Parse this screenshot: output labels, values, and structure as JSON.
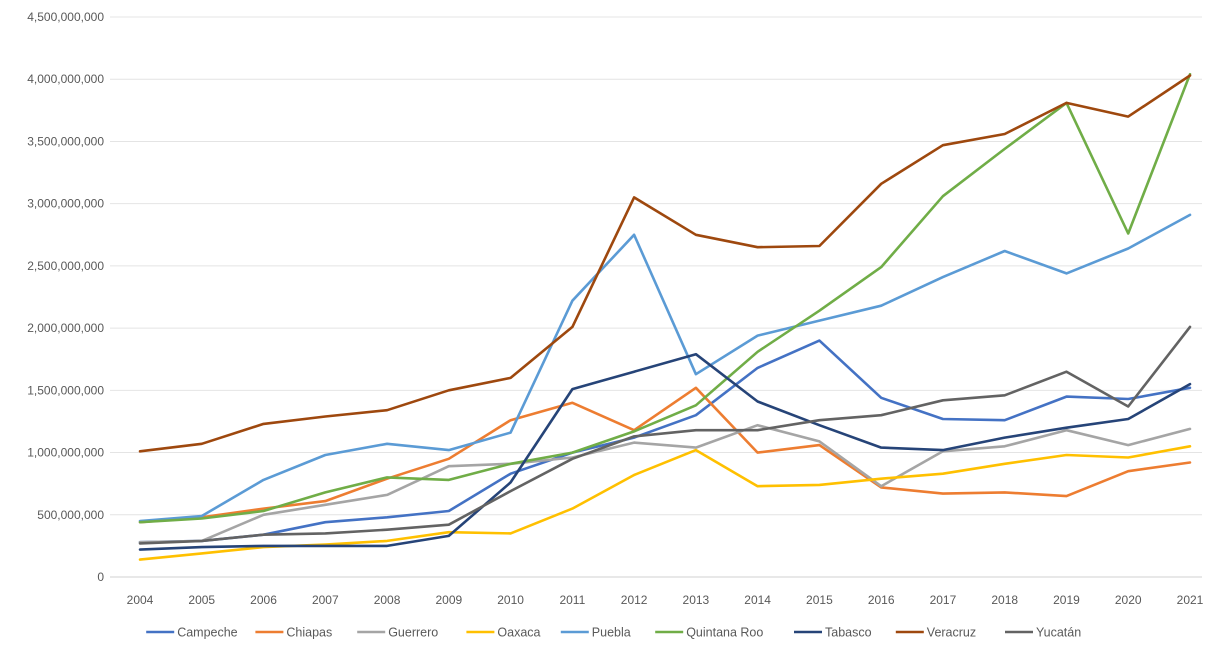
{
  "chart_data": {
    "type": "line",
    "title": "",
    "xlabel": "",
    "ylabel": "",
    "categories": [
      "2004",
      "2005",
      "2006",
      "2007",
      "2008",
      "2009",
      "2010",
      "2011",
      "2012",
      "2013",
      "2014",
      "2015",
      "2016",
      "2017",
      "2018",
      "2019",
      "2020",
      "2021"
    ],
    "ylim": [
      0,
      4500000000
    ],
    "yticks": [
      0,
      500000000,
      1000000000,
      1500000000,
      2000000000,
      2500000000,
      3000000000,
      3500000000,
      4000000000,
      4500000000
    ],
    "ytick_labels": [
      "0",
      "500,000,000",
      "1,000,000,000",
      "1,500,000,000",
      "2,000,000,000",
      "2,500,000,000",
      "3,000,000,000",
      "3,500,000,000",
      "4,000,000,000",
      "4,500,000,000"
    ],
    "grid": true,
    "legend_position": "bottom",
    "series": [
      {
        "name": "Campeche",
        "color": "#4472c4",
        "values": [
          280000000,
          290000000,
          340000000,
          440000000,
          480000000,
          530000000,
          830000000,
          1000000000,
          1120000000,
          1300000000,
          1680000000,
          1900000000,
          1440000000,
          1270000000,
          1260000000,
          1450000000,
          1430000000,
          1520000000
        ]
      },
      {
        "name": "Chiapas",
        "color": "#ed7d31",
        "values": [
          440000000,
          480000000,
          550000000,
          610000000,
          790000000,
          950000000,
          1260000000,
          1400000000,
          1180000000,
          1520000000,
          1000000000,
          1060000000,
          720000000,
          670000000,
          680000000,
          650000000,
          850000000,
          920000000
        ]
      },
      {
        "name": "Guerrero",
        "color": "#a5a5a5",
        "values": [
          280000000,
          290000000,
          500000000,
          580000000,
          660000000,
          890000000,
          910000000,
          960000000,
          1080000000,
          1040000000,
          1220000000,
          1090000000,
          730000000,
          1010000000,
          1050000000,
          1180000000,
          1060000000,
          1190000000
        ]
      },
      {
        "name": "Oaxaca",
        "color": "#ffc000",
        "values": [
          140000000,
          190000000,
          240000000,
          260000000,
          290000000,
          360000000,
          350000000,
          550000000,
          820000000,
          1020000000,
          730000000,
          740000000,
          790000000,
          830000000,
          910000000,
          980000000,
          960000000,
          1050000000
        ]
      },
      {
        "name": "Puebla",
        "color": "#5b9bd5",
        "values": [
          450000000,
          490000000,
          780000000,
          980000000,
          1070000000,
          1020000000,
          1160000000,
          2220000000,
          2750000000,
          1630000000,
          1940000000,
          2060000000,
          2180000000,
          2410000000,
          2620000000,
          2440000000,
          2640000000,
          2910000000
        ]
      },
      {
        "name": "Quintana Roo",
        "color": "#70ad47",
        "values": [
          440000000,
          470000000,
          530000000,
          680000000,
          800000000,
          780000000,
          910000000,
          1000000000,
          1170000000,
          1380000000,
          1810000000,
          2140000000,
          2490000000,
          3060000000,
          3440000000,
          3810000000,
          2760000000,
          4040000000
        ]
      },
      {
        "name": "Tabasco",
        "color": "#264478",
        "values": [
          220000000,
          240000000,
          250000000,
          250000000,
          250000000,
          330000000,
          760000000,
          1510000000,
          1650000000,
          1790000000,
          1410000000,
          1220000000,
          1040000000,
          1020000000,
          1120000000,
          1200000000,
          1270000000,
          1550000000
        ]
      },
      {
        "name": "Veracruz",
        "color": "#9e480e",
        "values": [
          1010000000,
          1070000000,
          1230000000,
          1290000000,
          1340000000,
          1500000000,
          1600000000,
          2010000000,
          3050000000,
          2750000000,
          2650000000,
          2660000000,
          3160000000,
          3470000000,
          3560000000,
          3810000000,
          3700000000,
          4030000000
        ]
      },
      {
        "name": "Yucatán",
        "color": "#636363",
        "values": [
          270000000,
          290000000,
          340000000,
          350000000,
          380000000,
          420000000,
          690000000,
          950000000,
          1130000000,
          1180000000,
          1180000000,
          1260000000,
          1300000000,
          1420000000,
          1460000000,
          1650000000,
          1370000000,
          2010000000
        ]
      }
    ]
  }
}
